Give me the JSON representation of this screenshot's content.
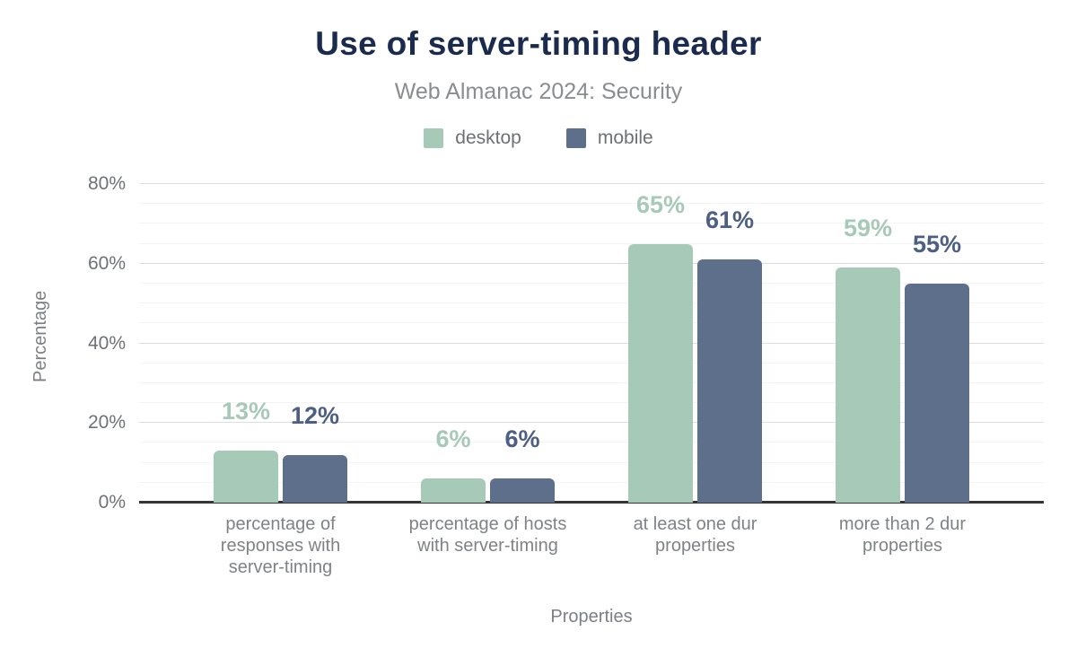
{
  "chart_data": {
    "type": "bar",
    "title": "Use of server-timing header",
    "subtitle": "Web Almanac 2024: Security",
    "xlabel": "Properties",
    "ylabel": "Percentage",
    "categories": [
      "percentage of responses with server-timing",
      "percentage of hosts with server-timing",
      "at least one dur properties",
      "more than 2 dur properties"
    ],
    "series": [
      {
        "name": "desktop",
        "color": "#a7c9b8",
        "label_color": "#a7c9b8",
        "values": [
          13,
          6,
          65,
          59
        ]
      },
      {
        "name": "mobile",
        "color": "#5d6f8b",
        "label_color": "#4d6084",
        "values": [
          12,
          6,
          61,
          55
        ]
      }
    ],
    "value_labels": {
      "desktop": [
        "13%",
        "6%",
        "65%",
        "59%"
      ],
      "mobile": [
        "12%",
        "6%",
        "61%",
        "55%"
      ]
    },
    "value_label_format": "{v}%",
    "ylim": [
      0,
      80
    ],
    "yticks": [
      0,
      20,
      40,
      60,
      80
    ],
    "ytick_labels": [
      "0%",
      "20%",
      "40%",
      "60%",
      "80%"
    ],
    "minor_grid_step": 5,
    "grid": "horizontal",
    "legend_position": "top",
    "colors": {
      "background": "#ffffff",
      "title": "#1b2b4d",
      "subtitle_text": "#8a8d90",
      "axis_text": "#6e7276",
      "category_text": "#7f8386",
      "axis_line": "#333537",
      "grid_major": "#dcdee0",
      "grid_minor": "#f3f4f5"
    }
  }
}
